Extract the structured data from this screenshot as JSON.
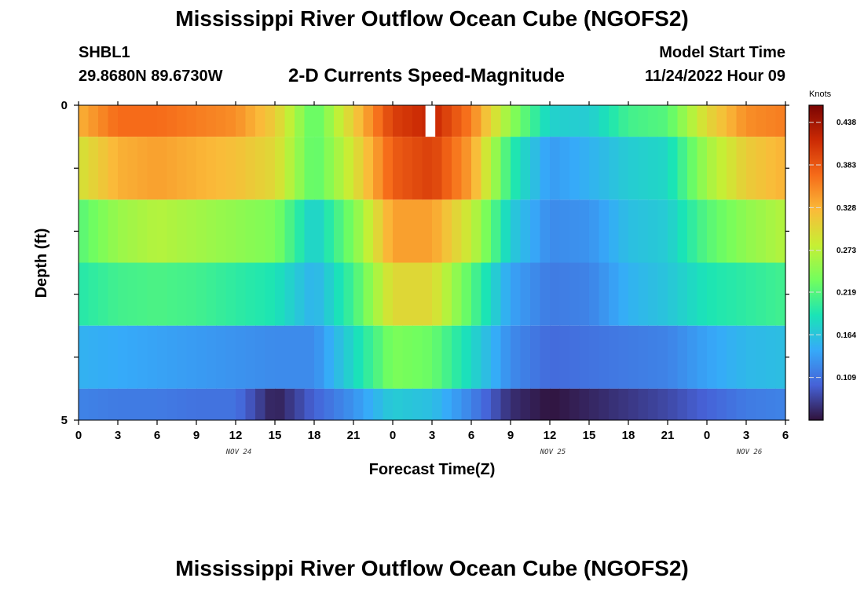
{
  "page": {
    "title": "Mississippi River Outflow Ocean Cube (NGOFS2)",
    "station_id": "SHBL1",
    "station_coords": "29.8680N  89.6730W",
    "plot_title": "2-D Currents Speed-Magnitude",
    "model_start_label": "Model Start Time",
    "model_start_value": "11/24/2022 Hour 09",
    "bottom_title": "Mississippi River Outflow Ocean Cube (NGOFS2)"
  },
  "chart_data": {
    "type": "heatmap",
    "title": "2-D Currents Speed-Magnitude",
    "xlabel": "Forecast Time(Z)",
    "ylabel": "Depth (ft)",
    "x_tick_labels": [
      "0",
      "3",
      "6",
      "9",
      "12",
      "15",
      "18",
      "21",
      "0",
      "3",
      "6",
      "9",
      "12",
      "15",
      "18",
      "21",
      "0",
      "3",
      "6"
    ],
    "x_range_hours": [
      0,
      54
    ],
    "date_labels": [
      {
        "text": "NOV 24",
        "hour": 12
      },
      {
        "text": "NOV 25",
        "hour": 36
      },
      {
        "text": "NOV 26",
        "hour": 51
      }
    ],
    "y_tick_labels": [
      "0",
      "5"
    ],
    "ylim": [
      5,
      0
    ],
    "colorbar": {
      "units": "Knots",
      "range": [
        0.054,
        0.46
      ],
      "tick_labels": [
        "0.438",
        "0.383",
        "0.328",
        "0.273",
        "0.219",
        "0.164",
        "0.109"
      ],
      "stops": [
        "#30123b",
        "#4662d7",
        "#36aaf9",
        "#1ae4b6",
        "#72fe5e",
        "#c7ef34",
        "#fabb39",
        "#f66b19",
        "#cb2a04",
        "#7a0403"
      ]
    },
    "x_hours": [
      0,
      3,
      6,
      9,
      12,
      15,
      18,
      21,
      24,
      27,
      30,
      33,
      36,
      39,
      42,
      45,
      48,
      51,
      54
    ],
    "layers": [
      {
        "depth_top": 0.0,
        "depth_bottom": 0.5,
        "values": [
          0.33,
          0.37,
          0.37,
          0.36,
          0.35,
          0.31,
          0.22,
          0.31,
          0.4,
          0.42,
          0.36,
          0.25,
          0.175,
          0.17,
          0.21,
          0.22,
          0.3,
          0.35,
          0.36
        ]
      },
      {
        "depth_top": 0.5,
        "depth_bottom": 1.5,
        "values": [
          0.29,
          0.33,
          0.34,
          0.33,
          0.32,
          0.3,
          0.22,
          0.29,
          0.38,
          0.4,
          0.34,
          0.2,
          0.135,
          0.15,
          0.17,
          0.18,
          0.26,
          0.31,
          0.33
        ]
      },
      {
        "depth_top": 1.5,
        "depth_bottom": 2.5,
        "values": [
          0.22,
          0.255,
          0.27,
          0.26,
          0.25,
          0.24,
          0.17,
          0.24,
          0.34,
          0.34,
          0.28,
          0.17,
          0.125,
          0.13,
          0.16,
          0.17,
          0.22,
          0.25,
          0.27
        ]
      },
      {
        "depth_top": 2.5,
        "depth_bottom": 3.5,
        "values": [
          0.195,
          0.21,
          0.215,
          0.21,
          0.2,
          0.19,
          0.15,
          0.21,
          0.3,
          0.3,
          0.22,
          0.14,
          0.115,
          0.12,
          0.15,
          0.165,
          0.19,
          0.2,
          0.21
        ]
      },
      {
        "depth_top": 3.5,
        "depth_bottom": 4.5,
        "values": [
          0.15,
          0.145,
          0.14,
          0.135,
          0.13,
          0.125,
          0.125,
          0.18,
          0.24,
          0.23,
          0.18,
          0.125,
          0.105,
          0.11,
          0.115,
          0.12,
          0.14,
          0.155,
          0.16
        ]
      },
      {
        "depth_top": 4.5,
        "depth_bottom": 5.0,
        "values": [
          0.12,
          0.115,
          0.115,
          0.11,
          0.11,
          0.06,
          0.1,
          0.13,
          0.17,
          0.16,
          0.12,
          0.07,
          0.055,
          0.065,
          0.075,
          0.085,
          0.1,
          0.115,
          0.12
        ]
      }
    ],
    "missing_cell": {
      "hour": 26.5,
      "depth_top": 0.0,
      "depth_bottom": 0.5
    }
  }
}
